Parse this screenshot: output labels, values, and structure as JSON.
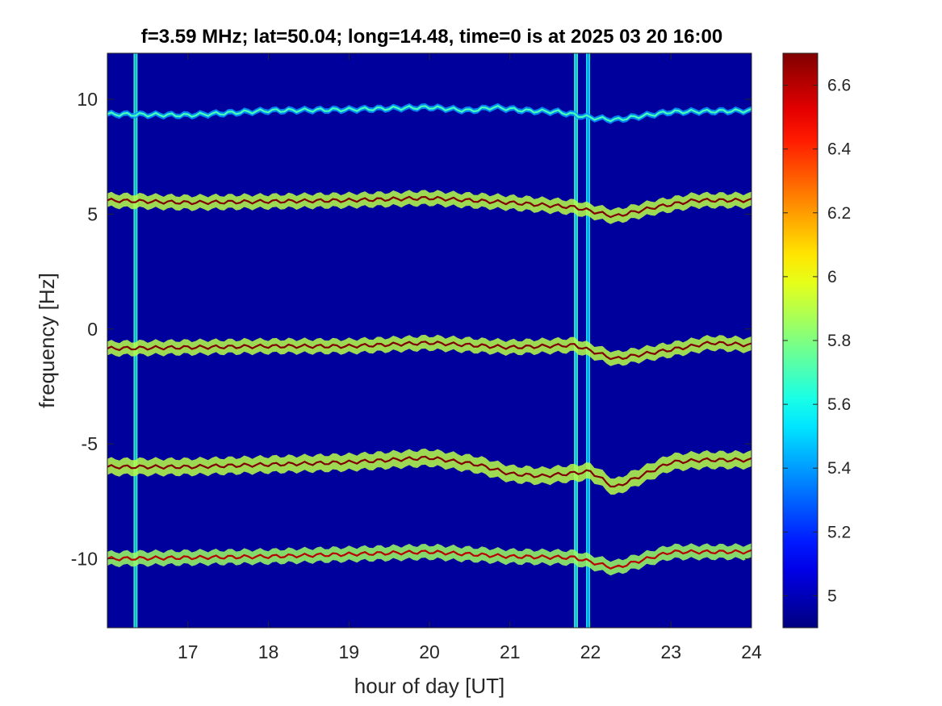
{
  "chart_data": {
    "type": "heatmap",
    "title": "f=3.59 MHz;  lat=50.04; long=14.48, time=0 is at 2025 03 20 16:00",
    "xlabel": "hour of day [UT]",
    "ylabel": "frequency [Hz]",
    "xlim": [
      16,
      24
    ],
    "ylim": [
      -13,
      12
    ],
    "x_ticks": [
      17,
      18,
      19,
      20,
      21,
      22,
      23,
      24
    ],
    "y_ticks": [
      -10,
      -5,
      0,
      5,
      10
    ],
    "colorbar": {
      "range": [
        4.9,
        6.7
      ],
      "ticks": [
        5,
        5.2,
        5.4,
        5.6,
        5.8,
        6,
        6.2,
        6.4,
        6.6
      ],
      "colormap": "jet"
    },
    "background_value": 4.95,
    "traces": [
      {
        "base_freq": 9.5,
        "peak": 5.7,
        "width_hz": 0.12,
        "wiggle": [
          [
            16.0,
            -0.15
          ],
          [
            17.0,
            -0.2
          ],
          [
            18.0,
            0.0
          ],
          [
            19.0,
            0.05
          ],
          [
            20.0,
            0.15
          ],
          [
            20.5,
            0.0
          ],
          [
            20.8,
            0.15
          ],
          [
            21.2,
            0.0
          ],
          [
            21.6,
            -0.05
          ],
          [
            22.0,
            -0.3
          ],
          [
            22.3,
            -0.4
          ],
          [
            23.0,
            -0.05
          ],
          [
            24.0,
            0.0
          ]
        ]
      },
      {
        "base_freq": 5.5,
        "peak": 6.7,
        "width_hz": 0.3,
        "wiggle": [
          [
            16.0,
            0.1
          ],
          [
            17.0,
            0.0
          ],
          [
            18.0,
            0.05
          ],
          [
            19.0,
            0.1
          ],
          [
            20.0,
            0.2
          ],
          [
            21.0,
            0.0
          ],
          [
            21.8,
            -0.2
          ],
          [
            22.3,
            -0.6
          ],
          [
            22.8,
            -0.2
          ],
          [
            23.3,
            0.1
          ],
          [
            24.0,
            0.1
          ]
        ]
      },
      {
        "base_freq": -0.8,
        "peak": 6.7,
        "width_hz": 0.3,
        "wiggle": [
          [
            16.0,
            -0.05
          ],
          [
            17.0,
            0.0
          ],
          [
            18.0,
            0.05
          ],
          [
            19.0,
            0.05
          ],
          [
            20.0,
            0.2
          ],
          [
            21.0,
            0.0
          ],
          [
            21.8,
            0.1
          ],
          [
            22.3,
            -0.5
          ],
          [
            23.0,
            -0.1
          ],
          [
            23.5,
            0.2
          ],
          [
            24.0,
            0.1
          ]
        ]
      },
      {
        "base_freq": -6.0,
        "peak": 6.7,
        "width_hz": 0.35,
        "wiggle": [
          [
            16.0,
            0.0
          ],
          [
            17.0,
            0.0
          ],
          [
            18.0,
            0.1
          ],
          [
            19.0,
            0.2
          ],
          [
            20.0,
            0.4
          ],
          [
            20.6,
            0.1
          ],
          [
            21.0,
            -0.3
          ],
          [
            21.4,
            -0.4
          ],
          [
            22.0,
            -0.2
          ],
          [
            22.3,
            -0.9
          ],
          [
            23.0,
            0.2
          ],
          [
            23.4,
            0.3
          ],
          [
            24.0,
            0.3
          ]
        ]
      },
      {
        "base_freq": -10.0,
        "peak": 6.6,
        "width_hz": 0.3,
        "wiggle": [
          [
            16.0,
            0.0
          ],
          [
            17.0,
            0.05
          ],
          [
            18.0,
            0.1
          ],
          [
            19.0,
            0.2
          ],
          [
            20.0,
            0.3
          ],
          [
            21.0,
            0.1
          ],
          [
            21.8,
            0.05
          ],
          [
            22.3,
            -0.4
          ],
          [
            23.0,
            0.3
          ],
          [
            23.5,
            0.3
          ],
          [
            24.0,
            0.3
          ]
        ]
      }
    ],
    "vertical_bands": [
      {
        "hour": 16.35,
        "width_h": 0.05,
        "value": 5.7
      },
      {
        "hour": 21.82,
        "width_h": 0.05,
        "value": 5.7
      },
      {
        "hour": 21.97,
        "width_h": 0.05,
        "value": 5.6
      }
    ]
  }
}
